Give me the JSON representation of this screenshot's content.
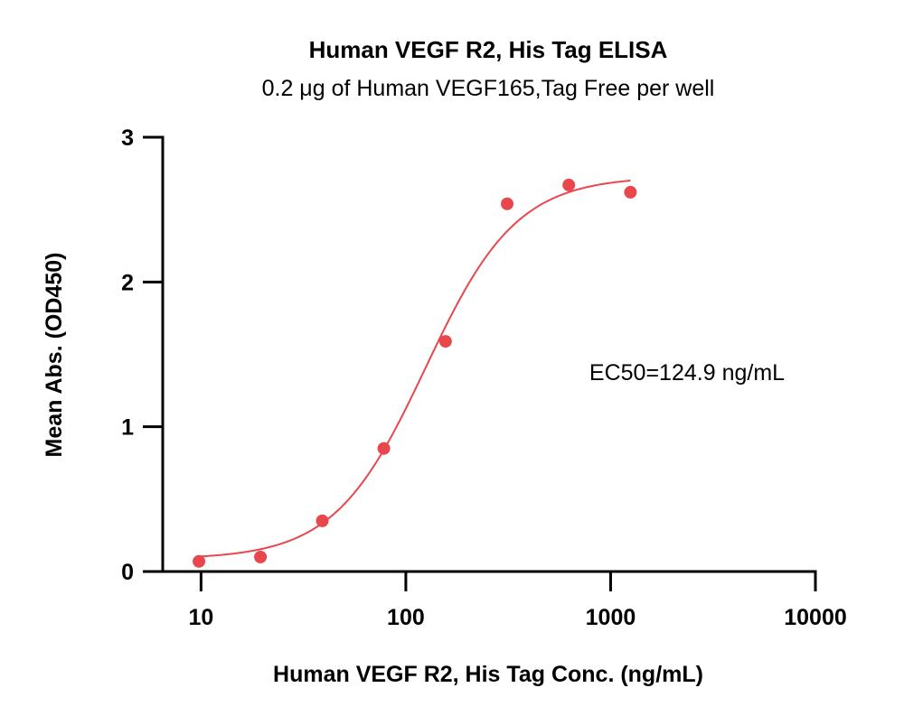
{
  "chart_data": {
    "type": "scatter",
    "title": "Human VEGF R2, His Tag ELISA",
    "subtitle": "0.2 μg of Human VEGF165,Tag Free per well",
    "xlabel": "Human VEGF R2, His Tag Conc. (ng/mL)",
    "ylabel": "Mean Abs. (OD450)",
    "x_scale": "log",
    "xlim": [
      6.5,
      10000
    ],
    "ylim": [
      0,
      3
    ],
    "x_ticks": [
      10,
      100,
      1000,
      10000
    ],
    "x_tick_labels": [
      "10",
      "100",
      "1000",
      "10000"
    ],
    "y_ticks": [
      0,
      1,
      2,
      3
    ],
    "y_tick_labels": [
      "0",
      "1",
      "2",
      "3"
    ],
    "grid": false,
    "annotation": "EC50=124.9 ng/mL",
    "color": "#e8474c",
    "series": [
      {
        "x": [
          9.77,
          19.5,
          39.1,
          78.1,
          156.3,
          312.5,
          625,
          1250
        ],
        "y": [
          0.07,
          0.1,
          0.35,
          0.85,
          1.59,
          2.54,
          2.67,
          2.62
        ]
      }
    ],
    "fit": {
      "model": "4PL",
      "bottom": 0.085,
      "top": 2.73,
      "ec50": 124.9,
      "hill": 1.95,
      "x_range": [
        10,
        1250
      ]
    }
  }
}
